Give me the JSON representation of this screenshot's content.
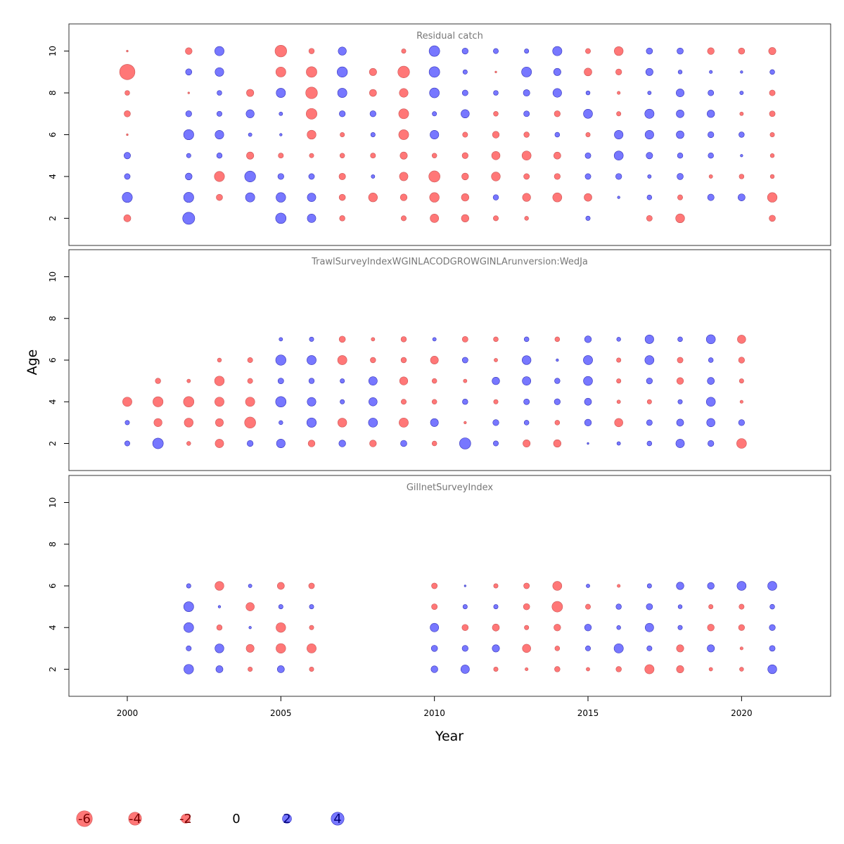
{
  "chart_data": {
    "type": "scatter",
    "xlabel": "Year",
    "ylabel": "Age",
    "xlim": [
      1998.1,
      2022.9
    ],
    "ylim": [
      0.7,
      11.3
    ],
    "x_ticks": [
      2000,
      2005,
      2010,
      2015,
      2020
    ],
    "y_ticks": [
      2,
      4,
      6,
      8,
      10
    ],
    "colors": {
      "positive": "#7777ff",
      "negative": "#ff7777",
      "positive_edge": "#3333bb",
      "negative_edge": "#cc5555"
    },
    "legend": {
      "placement": "bottom",
      "entries": [
        {
          "label": "-6",
          "value": -6
        },
        {
          "label": "-4",
          "value": -4
        },
        {
          "label": "-2",
          "value": -2
        },
        {
          "label": "0",
          "value": 0
        },
        {
          "label": "2",
          "value": 2
        },
        {
          "label": "4",
          "value": 4
        }
      ]
    },
    "panels": [
      {
        "title": "Residual catch",
        "years": [
          2000,
          2002,
          2003,
          2004,
          2005,
          2006,
          2007,
          2008,
          2009,
          2010,
          2011,
          2012,
          2013,
          2014,
          2015,
          2016,
          2017,
          2018,
          2019,
          2020,
          2021
        ],
        "ages": [
          10,
          9,
          8,
          7,
          6,
          5,
          4,
          3,
          2
        ],
        "residuals": [
          [
            -0.1,
            -7.1,
            -0.7,
            -1.2,
            -0.1,
            1.3,
            1.0,
            3.1,
            -1.5
          ],
          [
            -1.4,
            1.2,
            -0.1,
            1.1,
            3.1,
            0.6,
            1.4,
            3.1,
            4.4
          ],
          [
            2.6,
            2.3,
            0.7,
            0.8,
            2.3,
            0.9,
            -3.1,
            -1.2,
            0
          ],
          [
            0,
            0,
            -1.6,
            2.0,
            0.4,
            -1.6,
            3.6,
            2.6,
            0
          ],
          [
            -4.1,
            -3.0,
            2.6,
            0.4,
            0.2,
            -0.8,
            1.1,
            2.8,
            3.3
          ],
          [
            -0.9,
            -3.4,
            -4.1,
            -3.5,
            -2.4,
            -0.6,
            1.0,
            2.2,
            2.2
          ],
          [
            2.0,
            3.2,
            2.6,
            1.1,
            -0.6,
            -0.7,
            -1.3,
            -1.2,
            -0.9
          ],
          [
            0,
            -1.6,
            -1.5,
            1.1,
            0.6,
            -0.8,
            0.4,
            -2.4,
            0
          ],
          [
            -0.6,
            -4.1,
            -2.3,
            -3.0,
            -3.0,
            -1.6,
            -2.2,
            -1.4,
            -0.8
          ],
          [
            3.4,
            3.4,
            2.9,
            0.6,
            2.3,
            -0.7,
            -3.8,
            -2.8,
            -2.2
          ],
          [
            1.1,
            0.6,
            1.0,
            2.1,
            -0.8,
            -1.1,
            -1.4,
            -1.7,
            -1.7
          ],
          [
            0.8,
            -0.1,
            0.7,
            -0.7,
            -1.4,
            -2.1,
            -2.4,
            0.9,
            -0.8
          ],
          [
            0.6,
            3.0,
            1.3,
            1.0,
            -0.9,
            -2.5,
            -1.0,
            -2.0,
            -0.5
          ],
          [
            2.6,
            1.6,
            2.3,
            -1.1,
            0.7,
            -1.5,
            -1.1,
            -2.5,
            0
          ],
          [
            -0.8,
            -1.8,
            0.5,
            2.5,
            -0.6,
            1.0,
            1.0,
            -1.8,
            0.6
          ],
          [
            -2.4,
            -1.1,
            -0.3,
            -0.6,
            2.3,
            2.5,
            1.1,
            0.2,
            0
          ],
          [
            1.2,
            1.6,
            0.4,
            2.6,
            2.3,
            1.3,
            0.4,
            0.7,
            -1.0
          ],
          [
            1.2,
            0.5,
            1.9,
            1.8,
            1.8,
            0.9,
            1.2,
            -0.8,
            -2.4
          ],
          [
            -1.4,
            0.3,
            1.0,
            1.7,
            1.1,
            0.9,
            -0.4,
            1.3,
            0
          ],
          [
            -1.2,
            0.2,
            0.4,
            -0.4,
            0.9,
            0.2,
            -0.7,
            1.5,
            0
          ],
          [
            -1.6,
            0.7,
            -1.0,
            -1.0,
            -0.6,
            -0.5,
            -0.5,
            -2.8,
            -1.2
          ]
        ]
      },
      {
        "title": "TrawlSurveyIndexWGINLACODGROWGINLArunversion:WedJa",
        "years": [
          2000,
          2001,
          2002,
          2003,
          2004,
          2005,
          2006,
          2007,
          2008,
          2009,
          2010,
          2011,
          2012,
          2013,
          2014,
          2015,
          2016,
          2017,
          2018,
          2019,
          2020
        ],
        "ages": [
          7,
          6,
          5,
          4,
          3,
          2
        ],
        "residuals": [
          [
            0,
            0,
            0,
            -2.6,
            0.6,
            0.8
          ],
          [
            0,
            0,
            -0.9,
            -3.1,
            -2.0,
            3.4
          ],
          [
            0,
            0,
            -0.4,
            -3.3,
            -2.4,
            -0.5
          ],
          [
            0,
            -0.5,
            -2.8,
            -2.6,
            -1.9,
            -2.2
          ],
          [
            0,
            -0.8,
            -0.8,
            -2.6,
            -3.7,
            1.1
          ],
          [
            0.4,
            3.2,
            1.0,
            3.3,
            0.5,
            2.3
          ],
          [
            0.6,
            2.6,
            0.9,
            2.3,
            2.7,
            -1.4
          ],
          [
            -1.2,
            -2.6,
            0.6,
            0.6,
            -2.4,
            1.4
          ],
          [
            -0.4,
            -0.9,
            2.2,
            2.1,
            2.5,
            -1.4
          ],
          [
            -0.9,
            -0.9,
            -2.0,
            -0.8,
            -2.6,
            1.2
          ],
          [
            0.4,
            -1.9,
            -0.7,
            -0.7,
            1.9,
            -0.7
          ],
          [
            -1.0,
            1.0,
            -0.4,
            0.9,
            -0.2,
            3.8
          ],
          [
            -0.7,
            -0.4,
            1.7,
            -0.6,
            1.1,
            0.8
          ],
          [
            0.7,
            2.4,
            2.2,
            1.0,
            0.7,
            -1.6
          ],
          [
            -0.7,
            0.2,
            0.9,
            1.1,
            -0.7,
            -1.7
          ],
          [
            1.4,
            2.6,
            2.5,
            1.5,
            1.4,
            0.1
          ],
          [
            0.5,
            -0.6,
            -0.6,
            -0.4,
            -2.1,
            0.4
          ],
          [
            2.3,
            2.5,
            1.1,
            -0.6,
            1.0,
            0.7
          ],
          [
            0.7,
            -1.0,
            -1.4,
            0.6,
            1.5,
            2.2
          ],
          [
            2.5,
            0.7,
            1.5,
            2.5,
            2.1,
            1.1
          ],
          [
            -2.1,
            -1.1,
            -0.6,
            -0.3,
            1.1,
            -2.9
          ]
        ]
      },
      {
        "title": "GillnetSurveyIndex",
        "years": [
          2002,
          2003,
          2004,
          2005,
          2006,
          2010,
          2011,
          2012,
          2013,
          2014,
          2015,
          2016,
          2017,
          2018,
          2019,
          2020,
          2021
        ],
        "ages": [
          6,
          5,
          4,
          3,
          2
        ],
        "residuals": [
          [
            0.6,
            3.0,
            2.9,
            0.8,
            2.8
          ],
          [
            -2.4,
            0.2,
            -0.9,
            2.4,
            1.5
          ],
          [
            0.4,
            -2.1,
            0.2,
            -1.9,
            -0.6
          ],
          [
            -1.5,
            0.6,
            -2.8,
            -2.8,
            1.5
          ],
          [
            -1.0,
            0.6,
            -0.6,
            -2.6,
            -0.6
          ],
          [
            -1.0,
            -1.0,
            2.2,
            1.2,
            1.4
          ],
          [
            0.1,
            0.6,
            -1.2,
            1.1,
            2.2
          ],
          [
            -0.6,
            0.6,
            -1.5,
            1.6,
            -0.6
          ],
          [
            -1.0,
            -1.2,
            -0.6,
            -2.1,
            -0.3
          ],
          [
            -2.5,
            -3.4,
            -1.4,
            -0.7,
            -0.9
          ],
          [
            0.4,
            -0.8,
            1.4,
            0.8,
            -0.4
          ],
          [
            -0.3,
            0.9,
            0.5,
            2.6,
            -0.9
          ],
          [
            0.6,
            1.2,
            2.2,
            0.8,
            -2.6
          ],
          [
            1.7,
            0.5,
            0.6,
            -1.6,
            -1.6
          ],
          [
            1.4,
            -0.6,
            -1.4,
            1.6,
            -0.4
          ],
          [
            2.5,
            -0.8,
            -1.1,
            -0.3,
            -0.5
          ],
          [
            2.5,
            0.7,
            1.1,
            1.0,
            2.4
          ]
        ]
      }
    ]
  }
}
